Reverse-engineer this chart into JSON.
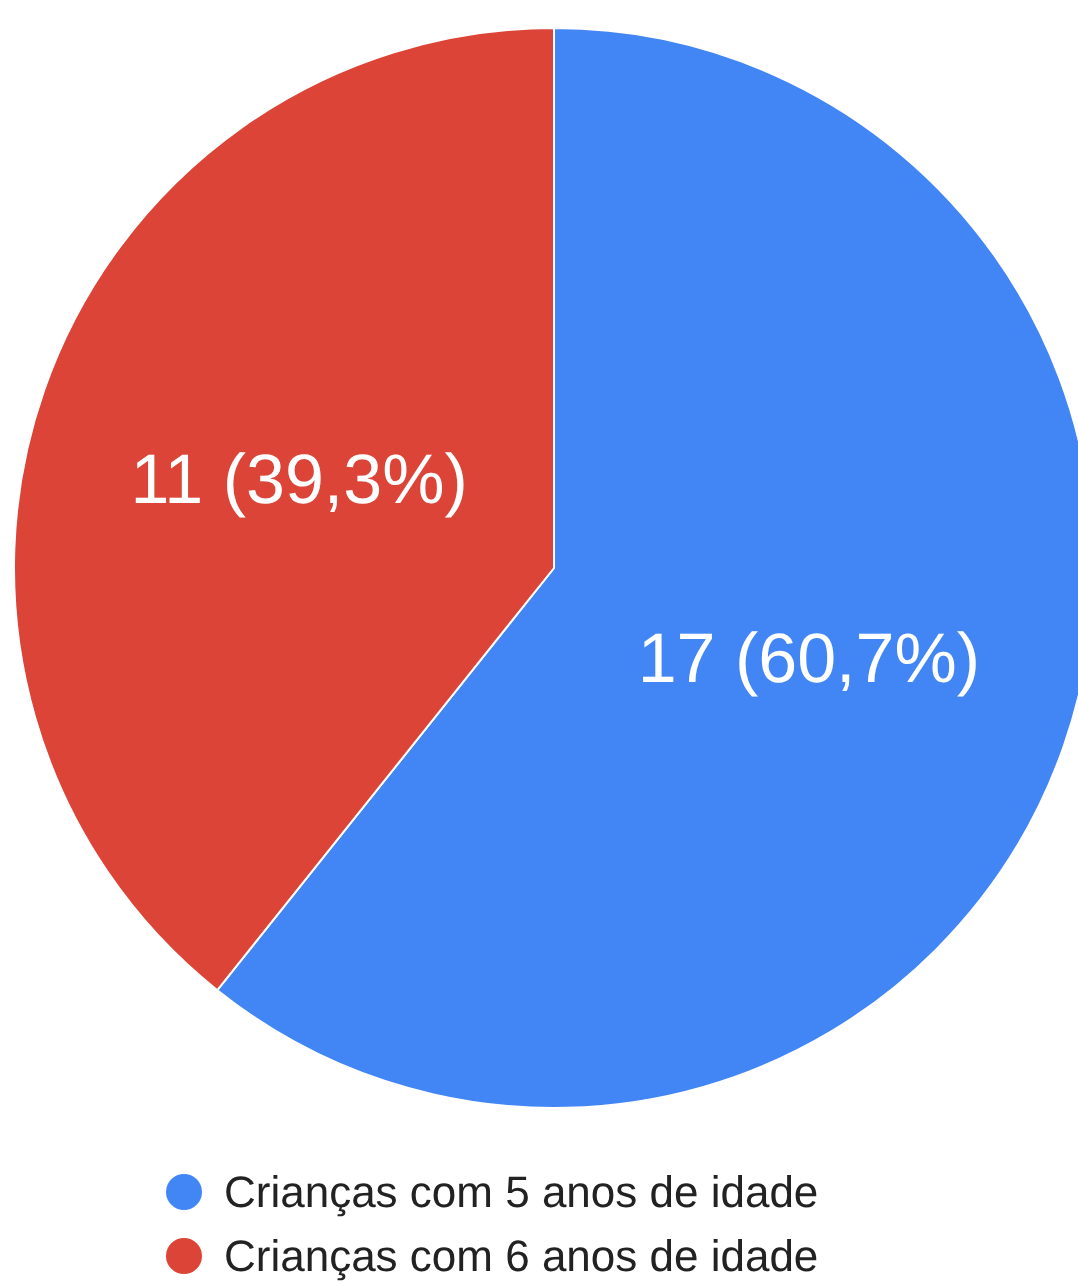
{
  "chart_data": {
    "type": "pie",
    "categories": [
      "Crianças com 5 anos de idade",
      "Crianças com 6 anos de idade"
    ],
    "values": [
      17,
      11
    ],
    "colors": [
      "#4285f4",
      "#db4437"
    ],
    "value_labels": [
      "17 (60,7%)",
      "11 (39,3%)"
    ],
    "legend": "bottom"
  }
}
